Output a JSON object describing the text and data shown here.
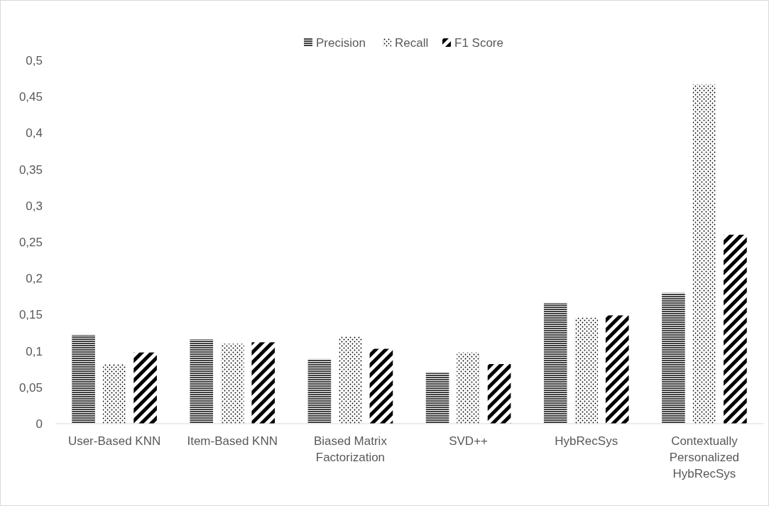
{
  "chart_data": {
    "type": "bar",
    "categories": [
      "User-Based KNN",
      "Item-Based KNN",
      "Biased Matrix Factorization",
      "SVD++",
      "HybRecSys",
      "Contextually Personalized HybRecSys"
    ],
    "series": [
      {
        "name": "Precision",
        "color": "#404040",
        "values": [
          0.122,
          0.116,
          0.089,
          0.07,
          0.166,
          0.18
        ]
      },
      {
        "name": "Recall",
        "color": "#000000",
        "values": [
          0.082,
          0.11,
          0.12,
          0.098,
          0.146,
          0.467
        ]
      },
      {
        "name": "F1 Score",
        "color": "#000000",
        "values": [
          0.098,
          0.112,
          0.103,
          0.082,
          0.149,
          0.26
        ]
      }
    ],
    "ylim": [
      0,
      0.5
    ],
    "yticks": [
      0,
      {
        "value": 0.05,
        "label": "0,05"
      },
      {
        "value": 0.1,
        "label": "0,1"
      },
      {
        "value": 0.15,
        "label": "0,15"
      },
      {
        "value": 0.2,
        "label": "0,2"
      },
      {
        "value": 0.25,
        "label": "0,25"
      },
      {
        "value": 0.3,
        "label": "0,3"
      },
      {
        "value": 0.35,
        "label": "0,35"
      },
      {
        "value": 0.4,
        "label": "0,4"
      },
      {
        "value": 0.45,
        "label": "0,45"
      },
      {
        "value": 0.5,
        "label": "0,5"
      }
    ],
    "legend": "top",
    "grid": false
  }
}
